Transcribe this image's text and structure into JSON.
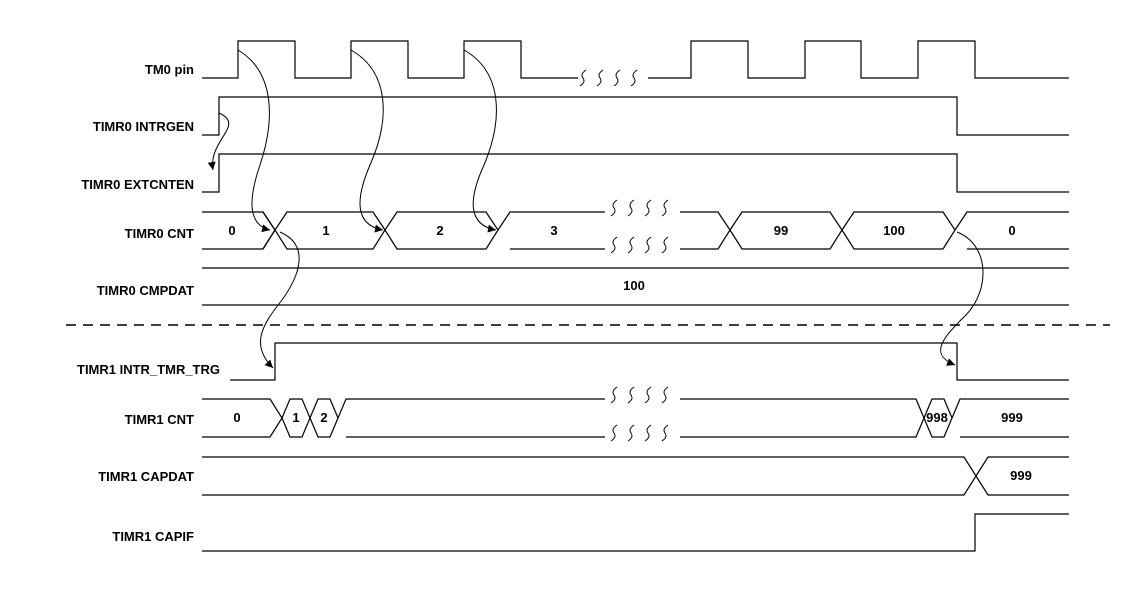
{
  "signals": [
    {
      "id": "tm0-pin",
      "label": "TM0 pin"
    },
    {
      "id": "timr0-intrgen",
      "label": "TIMR0 INTRGEN"
    },
    {
      "id": "timr0-extcnten",
      "label": "TIMR0 EXTCNTEN"
    },
    {
      "id": "timr0-cnt",
      "label": "TIMR0 CNT"
    },
    {
      "id": "timr0-cmpdat",
      "label": "TIMR0 CMPDAT"
    },
    {
      "id": "timr1-intr-tmr-trg",
      "label": "TIMR1 INTR_TMR_TRG"
    },
    {
      "id": "timr1-cnt",
      "label": "TIMR1 CNT"
    },
    {
      "id": "timr1-capdat",
      "label": "TIMR1 CAPDAT"
    },
    {
      "id": "timr1-capif",
      "label": "TIMR1 CAPIF"
    }
  ],
  "bus_values": {
    "timr0_cnt": [
      "0",
      "1",
      "2",
      "3",
      "99",
      "100",
      "0"
    ],
    "timr0_cmpdat": "100",
    "timr1_cnt": [
      "0",
      "1",
      "2",
      "998",
      "999"
    ],
    "timr1_capdat": "999"
  },
  "colors": {
    "line": "#000000",
    "background": "#ffffff"
  }
}
